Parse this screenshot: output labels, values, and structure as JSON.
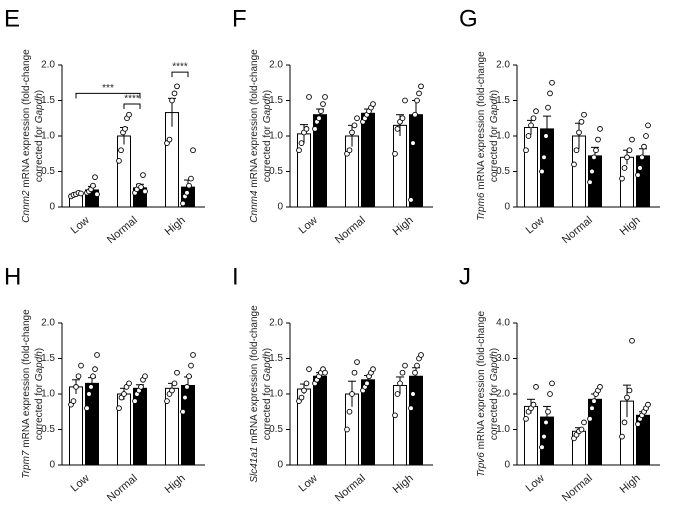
{
  "chart_data": [
    {
      "type": "bar",
      "letter": "E",
      "ylabel": [
        [
          "Cnnm2",
          " mRNA expression (fold-change"
        ],
        [
          "corrected for ",
          "Gapdh",
          ")"
        ]
      ],
      "categories": [
        "Low",
        "Normal",
        "High"
      ],
      "ylim": [
        0,
        2
      ],
      "yticks": [
        0,
        0.5,
        {
          "value": 1,
          "label": "1.0"
        },
        1.5,
        {
          "value": 2,
          "label": "2.0"
        }
      ],
      "series": [
        {
          "color": "#ffffff",
          "values": [
            0.18,
            1.0,
            1.33
          ],
          "errors": [
            0.02,
            0.12,
            0.2
          ],
          "points": [
            [
              0.15,
              0.17,
              0.18,
              0.2,
              0.19
            ],
            [
              0.65,
              0.8,
              1.05,
              1.1,
              1.25,
              1.3
            ],
            [
              0.9,
              0.95,
              1.5,
              1.6,
              1.7
            ]
          ]
        },
        {
          "color": "#000000",
          "values": [
            0.24,
            0.27,
            0.28
          ],
          "errors": [
            0.05,
            0.05,
            0.1
          ],
          "points": [
            [
              0.2,
              0.22,
              0.25,
              0.3,
              0.42,
              0.18
            ],
            [
              0.2,
              0.25,
              0.3,
              0.28,
              0.45,
              0.22
            ],
            [
              0.05,
              0.15,
              0.2,
              0.3,
              0.4,
              0.8
            ]
          ]
        }
      ],
      "annotations": [
        {
          "text": "***",
          "y": 1.6
        },
        {
          "text": "****",
          "y": 1.45
        },
        {
          "text": "****",
          "y": 1.9
        }
      ]
    },
    {
      "type": "bar",
      "letter": "F",
      "ylabel": [
        [
          "Cnnm4",
          " mRNA expression (fold-change"
        ],
        [
          "corrected for ",
          "Gapdh",
          ")"
        ]
      ],
      "categories": [
        "Low",
        "Normal",
        "High"
      ],
      "ylim": [
        0,
        2
      ],
      "yticks": [
        0,
        0.5,
        {
          "value": 1,
          "label": "1.0"
        },
        1.5,
        {
          "value": 2,
          "label": "2.0"
        }
      ],
      "series": [
        {
          "color": "#ffffff",
          "values": [
            1.03,
            1.0,
            1.15
          ],
          "errors": [
            0.13,
            0.15,
            0.15
          ],
          "points": [
            [
              0.8,
              0.9,
              1.05,
              1.1,
              1.55
            ],
            [
              0.75,
              0.8,
              1.05,
              1.15,
              1.25
            ],
            [
              0.75,
              1.1,
              1.2,
              1.25,
              1.5
            ]
          ]
        },
        {
          "color": "#000000",
          "values": [
            1.3,
            1.32,
            1.3
          ],
          "errors": [
            0.08,
            0.06,
            0.2
          ],
          "points": [
            [
              1.1,
              1.2,
              1.25,
              1.35,
              1.45,
              1.55
            ],
            [
              1.2,
              1.25,
              1.3,
              1.35,
              1.4,
              1.45
            ],
            [
              0.1,
              0.9,
              1.3,
              1.5,
              1.6,
              1.7
            ]
          ]
        }
      ]
    },
    {
      "type": "bar",
      "letter": "G",
      "ylabel": [
        [
          "Trpm6",
          " mRNA expression (fold-change"
        ],
        [
          "corrected for ",
          "Gapdh",
          ")"
        ]
      ],
      "categories": [
        "Low",
        "Normal",
        "High"
      ],
      "ylim": [
        0,
        2
      ],
      "yticks": [
        0,
        0.5,
        {
          "value": 1,
          "label": "1.0"
        },
        1.5,
        {
          "value": 2,
          "label": "2.0"
        }
      ],
      "series": [
        {
          "color": "#ffffff",
          "values": [
            1.12,
            1.0,
            0.7
          ],
          "errors": [
            0.1,
            0.18,
            0.1
          ],
          "points": [
            [
              0.8,
              1.0,
              1.15,
              1.25,
              1.35
            ],
            [
              0.6,
              0.8,
              1.05,
              1.2,
              1.3
            ],
            [
              0.4,
              0.55,
              0.7,
              0.8,
              0.95
            ]
          ]
        },
        {
          "color": "#000000",
          "values": [
            1.1,
            0.72,
            0.72
          ],
          "errors": [
            0.18,
            0.12,
            0.1
          ],
          "points": [
            [
              0.5,
              0.7,
              1.0,
              1.4,
              1.6,
              1.75
            ],
            [
              0.35,
              0.5,
              0.7,
              0.8,
              0.95,
              1.1
            ],
            [
              0.45,
              0.55,
              0.7,
              0.85,
              1.0,
              1.15
            ]
          ]
        }
      ]
    },
    {
      "type": "bar",
      "letter": "H",
      "ylabel": [
        [
          "Trpm7",
          " mRNA expression (fold-change"
        ],
        [
          "corrected for ",
          "Gapdh",
          ")"
        ]
      ],
      "categories": [
        "Low",
        "Normal",
        "High"
      ],
      "ylim": [
        0,
        2
      ],
      "yticks": [
        0,
        0.5,
        {
          "value": 1,
          "label": "1.0"
        },
        1.5,
        {
          "value": 2,
          "label": "2.0"
        }
      ],
      "series": [
        {
          "color": "#ffffff",
          "values": [
            1.1,
            1.0,
            1.08
          ],
          "errors": [
            0.1,
            0.08,
            0.07
          ],
          "points": [
            [
              0.85,
              0.9,
              1.1,
              1.25,
              1.4
            ],
            [
              0.8,
              0.95,
              1.0,
              1.1,
              1.15
            ],
            [
              0.9,
              1.0,
              1.05,
              1.15,
              1.3
            ]
          ]
        },
        {
          "color": "#000000",
          "values": [
            1.15,
            1.08,
            1.12
          ],
          "errors": [
            0.08,
            0.05,
            0.12
          ],
          "points": [
            [
              0.8,
              1.0,
              1.1,
              1.25,
              1.35,
              1.55
            ],
            [
              0.9,
              1.0,
              1.05,
              1.1,
              1.2,
              1.25
            ],
            [
              0.75,
              0.95,
              1.1,
              1.25,
              1.4,
              1.55
            ]
          ]
        }
      ]
    },
    {
      "type": "bar",
      "letter": "I",
      "ylabel": [
        [
          "Slc41a1",
          " mRNA expression (fold-change"
        ],
        [
          "corrected for ",
          "Gapdh",
          ")"
        ]
      ],
      "categories": [
        "Low",
        "Normal",
        "High"
      ],
      "ylim": [
        0,
        2
      ],
      "yticks": [
        0,
        0.5,
        {
          "value": 1,
          "label": "1.0"
        },
        1.5,
        {
          "value": 2,
          "label": "2.0"
        }
      ],
      "series": [
        {
          "color": "#ffffff",
          "values": [
            1.07,
            1.0,
            1.12
          ],
          "errors": [
            0.07,
            0.18,
            0.12
          ],
          "points": [
            [
              0.9,
              0.95,
              1.05,
              1.15,
              1.35
            ],
            [
              0.5,
              0.75,
              1.0,
              1.3,
              1.45
            ],
            [
              0.7,
              1.0,
              1.15,
              1.3,
              1.4
            ]
          ]
        },
        {
          "color": "#000000",
          "values": [
            1.25,
            1.2,
            1.25
          ],
          "errors": [
            0.05,
            0.06,
            0.12
          ],
          "points": [
            [
              1.15,
              1.2,
              1.25,
              1.3,
              1.35,
              1.3
            ],
            [
              1.05,
              1.1,
              1.15,
              1.25,
              1.3,
              1.35
            ],
            [
              0.8,
              1.0,
              1.3,
              1.4,
              1.5,
              1.55
            ]
          ]
        }
      ]
    },
    {
      "type": "bar",
      "letter": "J",
      "ylabel": [
        [
          "Trpv6",
          " mRNA expression (fold-change"
        ],
        [
          "corrected for ",
          "Gapdh",
          ")"
        ]
      ],
      "categories": [
        "Low",
        "Normal",
        "High"
      ],
      "ylim": [
        0,
        4
      ],
      "yticks": [
        0,
        {
          "value": 1,
          "label": "1.0"
        },
        {
          "value": 2,
          "label": "2.0"
        },
        {
          "value": 3,
          "label": "3.0"
        },
        {
          "value": 4,
          "label": "4.0"
        }
      ],
      "series": [
        {
          "color": "#ffffff",
          "values": [
            1.65,
            0.95,
            1.8
          ],
          "errors": [
            0.2,
            0.1,
            0.45
          ],
          "points": [
            [
              1.3,
              1.5,
              1.6,
              1.7,
              2.2
            ],
            [
              0.75,
              0.85,
              0.95,
              1.0,
              1.2
            ],
            [
              0.8,
              1.2,
              1.9,
              2.1,
              3.5
            ]
          ]
        },
        {
          "color": "#000000",
          "values": [
            1.35,
            1.85,
            1.4
          ],
          "errors": [
            0.3,
            0.15,
            0.1
          ],
          "points": [
            [
              0.5,
              0.8,
              1.2,
              1.5,
              2.0,
              2.3
            ],
            [
              1.3,
              1.6,
              1.8,
              2.0,
              2.1,
              2.2
            ],
            [
              1.15,
              1.3,
              1.4,
              1.5,
              1.6,
              1.7
            ]
          ]
        }
      ]
    }
  ]
}
